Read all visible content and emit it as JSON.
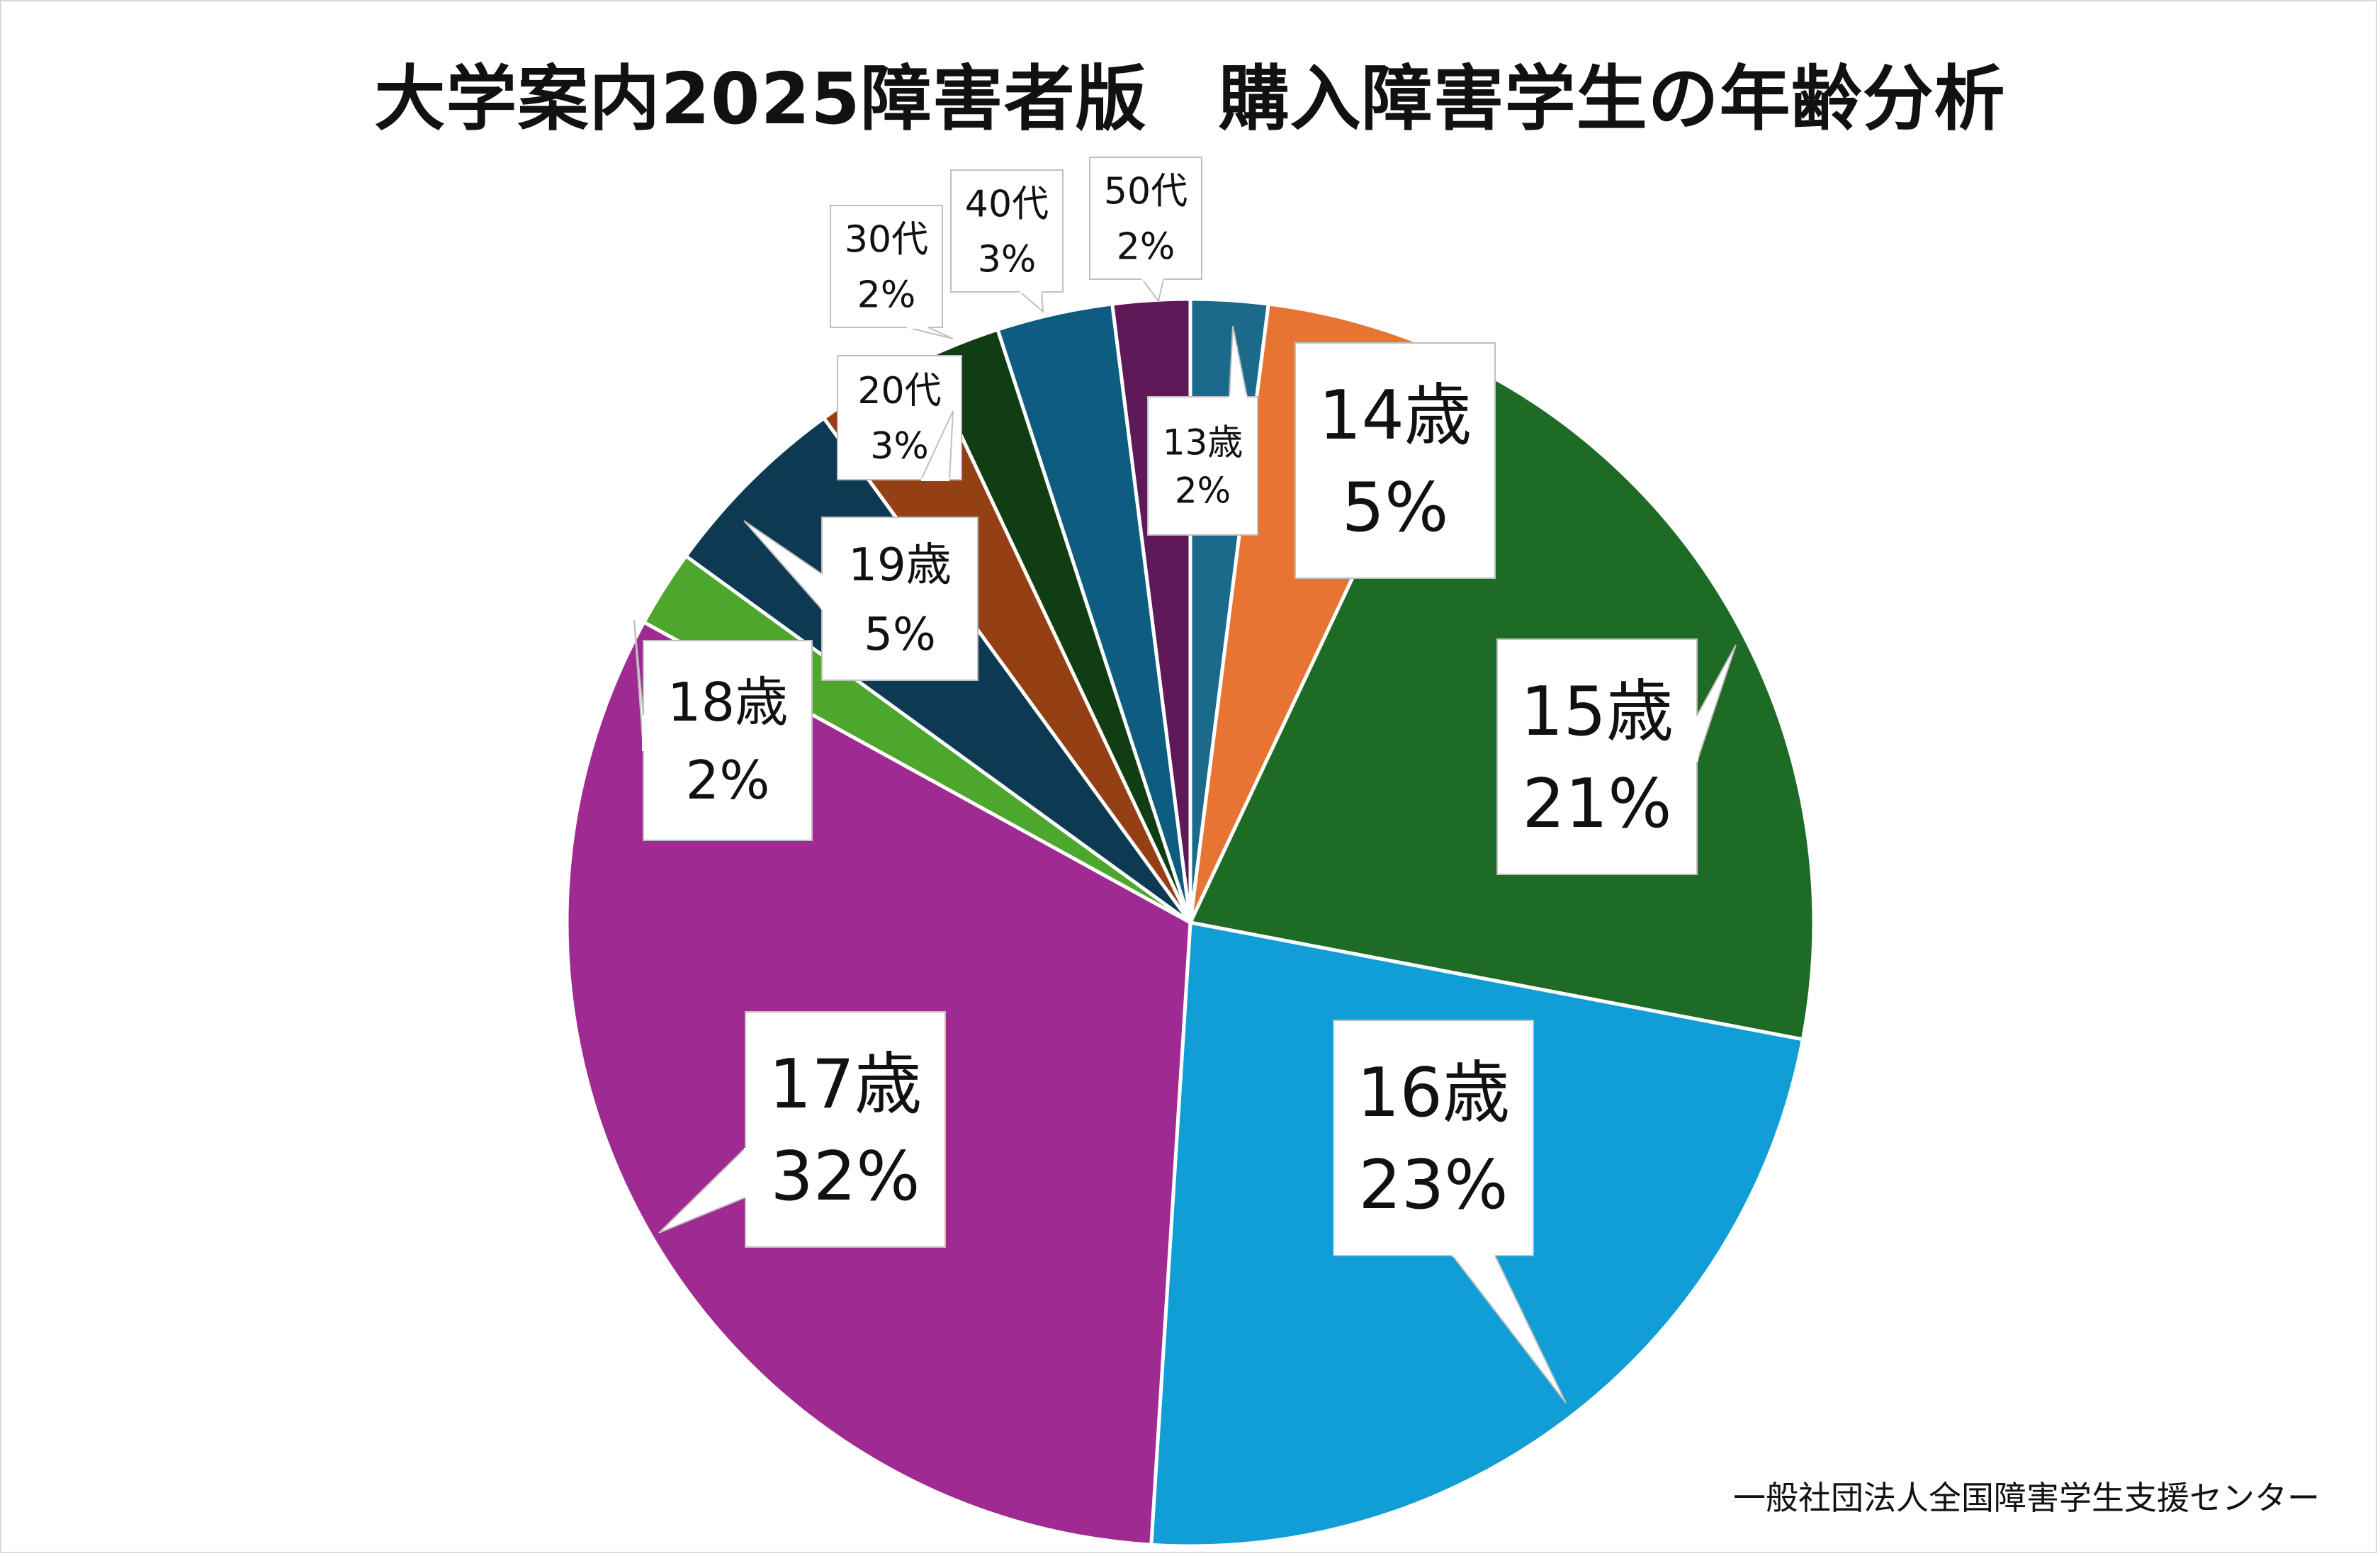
{
  "title": "大学案内2025障害者版　購入障害学生の年齢分析",
  "source": "一般社団法人全国障害学生支援センター",
  "chart_data": {
    "type": "pie",
    "title": "大学案内2025障害者版　購入障害学生の年齢分析",
    "start_angle_deg": 0,
    "direction": "clockwise",
    "slices": [
      {
        "label": "13歳",
        "value": 2,
        "pct_label": "2%",
        "color": "#1b6a8c"
      },
      {
        "label": "14歳",
        "value": 5,
        "pct_label": "5%",
        "color": "#e87434"
      },
      {
        "label": "15歳",
        "value": 21,
        "pct_label": "21%",
        "color": "#1e6b25"
      },
      {
        "label": "16歳",
        "value": 23,
        "pct_label": "23%",
        "color": "#119ed6"
      },
      {
        "label": "17歳",
        "value": 32,
        "pct_label": "32%",
        "color": "#9f2a92"
      },
      {
        "label": "18歳",
        "value": 2,
        "pct_label": "2%",
        "color": "#4ea72d"
      },
      {
        "label": "19歳",
        "value": 5,
        "pct_label": "5%",
        "color": "#0d3a52"
      },
      {
        "label": "20代",
        "value": 3,
        "pct_label": "3%",
        "color": "#944014"
      },
      {
        "label": "30代",
        "value": 2,
        "pct_label": "2%",
        "color": "#113d13"
      },
      {
        "label": "40代",
        "value": 3,
        "pct_label": "3%",
        "color": "#0e5d80"
      },
      {
        "label": "50代",
        "value": 2,
        "pct_label": "2%",
        "color": "#5f1858"
      }
    ],
    "legend": "none",
    "data_labels": "callouts"
  }
}
